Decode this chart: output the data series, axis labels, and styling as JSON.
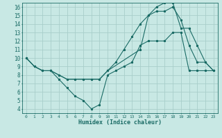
{
  "xlabel": "Humidex (Indice chaleur)",
  "background_color": "#c8e8e4",
  "grid_color": "#a8ceca",
  "line_color": "#1a6b65",
  "xlim": [
    -0.5,
    23.5
  ],
  "ylim": [
    3.5,
    16.5
  ],
  "xticks": [
    0,
    1,
    2,
    3,
    4,
    5,
    6,
    7,
    8,
    9,
    10,
    11,
    12,
    13,
    14,
    15,
    16,
    17,
    18,
    19,
    20,
    21,
    22,
    23
  ],
  "yticks": [
    4,
    5,
    6,
    7,
    8,
    9,
    10,
    11,
    12,
    13,
    14,
    15,
    16
  ],
  "line1_x": [
    0,
    1,
    2,
    3,
    4,
    5,
    6,
    7,
    8,
    9,
    10,
    11,
    12,
    13,
    14,
    15,
    16,
    17,
    18,
    19,
    20,
    21,
    22,
    23
  ],
  "line1_y": [
    10,
    9,
    8.5,
    8.5,
    7.5,
    6.5,
    5.5,
    5.0,
    4.0,
    4.5,
    8.0,
    8.5,
    9.0,
    9.5,
    11.5,
    12.0,
    12.0,
    12.0,
    13.0,
    13.0,
    8.5,
    8.5,
    8.5,
    8.5
  ],
  "line2_x": [
    0,
    1,
    2,
    3,
    4,
    5,
    6,
    7,
    8,
    9,
    10,
    11,
    12,
    13,
    14,
    15,
    16,
    17,
    18,
    19,
    20,
    21,
    22,
    23
  ],
  "line2_y": [
    10,
    9,
    8.5,
    8.5,
    8.0,
    7.5,
    7.5,
    7.5,
    7.5,
    7.5,
    8.5,
    9.5,
    11.0,
    12.5,
    14.0,
    15.0,
    15.5,
    15.5,
    16.0,
    14.5,
    11.5,
    9.5,
    9.5,
    8.5
  ],
  "line3_x": [
    0,
    1,
    2,
    3,
    4,
    5,
    6,
    7,
    8,
    9,
    10,
    14,
    15,
    16,
    17,
    18,
    19,
    20,
    21,
    22,
    23
  ],
  "line3_y": [
    10,
    9,
    8.5,
    8.5,
    8.0,
    7.5,
    7.5,
    7.5,
    7.5,
    7.5,
    8.5,
    11.0,
    15.0,
    16.0,
    16.5,
    16.5,
    13.5,
    13.5,
    11.5,
    9.5,
    8.5
  ]
}
